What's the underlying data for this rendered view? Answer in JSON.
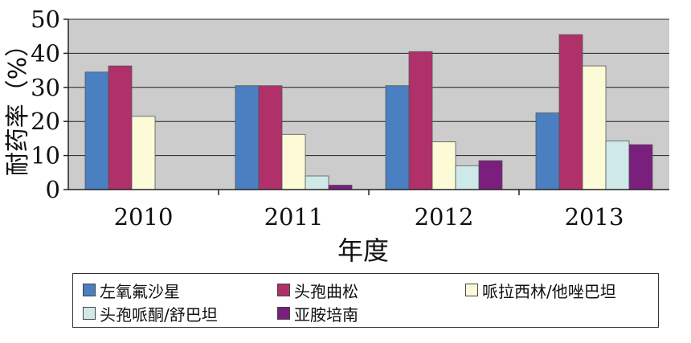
{
  "chart_data": {
    "type": "bar",
    "xlabel": "年度",
    "ylabel": "耐药率（%）",
    "categories": [
      "2010",
      "2011",
      "2012",
      "2013"
    ],
    "ylim": [
      0,
      50
    ],
    "yticks": [
      0,
      10,
      20,
      30,
      40,
      50
    ],
    "grid": true,
    "legend_position": "bottom",
    "series": [
      {
        "name": "左氧氟沙星",
        "color": "#4a7fc1",
        "values": [
          34.5,
          30.5,
          30.5,
          22.5
        ]
      },
      {
        "name": "头孢曲松",
        "color": "#b0306a",
        "values": [
          36.3,
          30.5,
          40.5,
          45.5
        ]
      },
      {
        "name": "哌拉西林/他唑巴坦",
        "color": "#fdfad8",
        "values": [
          21.5,
          16.2,
          14,
          36.3
        ]
      },
      {
        "name": "头孢哌酮/舒巴坦",
        "color": "#cfe9e9",
        "values": [
          0,
          4,
          7,
          14.3
        ]
      },
      {
        "name": "亚胺培南",
        "color": "#7a1f7e",
        "values": [
          0,
          1.3,
          8.5,
          13.2
        ]
      }
    ]
  }
}
